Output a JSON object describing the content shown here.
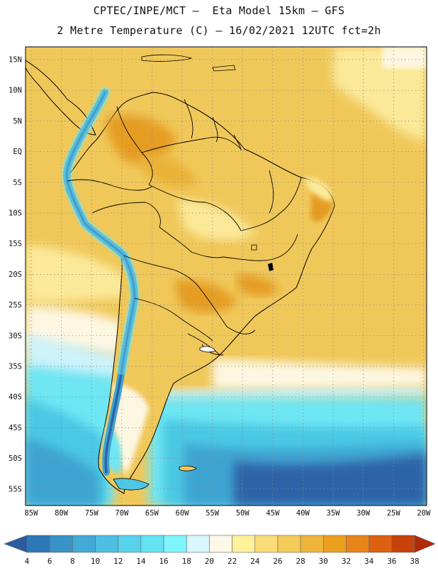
{
  "header": {
    "title_line1": "CPTEC/INPE/MCT –  Eta Model 15km – GFS",
    "title_line2": "2 Metre Temperature (C) – 16/02/2021 12UTC fct=2h"
  },
  "map": {
    "lat_labels": [
      "15N",
      "10N",
      "5N",
      "EQ",
      "5S",
      "10S",
      "15S",
      "20S",
      "25S",
      "30S",
      "35S",
      "40S",
      "45S",
      "50S",
      "55S"
    ],
    "lon_labels": [
      "85W",
      "80W",
      "75W",
      "70W",
      "65W",
      "60W",
      "55W",
      "50W",
      "45W",
      "40W",
      "35W",
      "30W",
      "25W",
      "20W"
    ],
    "grid_lines": "dotted",
    "colors": {
      "warm": "#f0c85a",
      "warmer": "#eab338",
      "hot": "#e59c22",
      "pale": "#fbe99a",
      "cream": "#fdf7e2",
      "cool": "#cdf2fb",
      "cyan": "#6ee6f4",
      "teal": "#4cc8e4",
      "blue": "#3ea4d2",
      "deep": "#2d64a8"
    }
  },
  "legend": {
    "tick_labels": [
      "4",
      "6",
      "8",
      "10",
      "12",
      "14",
      "16",
      "18",
      "20",
      "22",
      "24",
      "26",
      "28",
      "30",
      "32",
      "34",
      "36",
      "38"
    ],
    "colors": [
      "#2a5aa0",
      "#2f78b8",
      "#3a93c8",
      "#42aad6",
      "#4dbfe0",
      "#57d2ea",
      "#63e3f3",
      "#7ef5fd",
      "#d8f6fb",
      "#fdf9e6",
      "#fdf29a",
      "#f9dc78",
      "#f4cb58",
      "#efb53a",
      "#eb9f1e",
      "#e68418",
      "#dd6010",
      "#c8400a",
      "#b02a06"
    ]
  }
}
